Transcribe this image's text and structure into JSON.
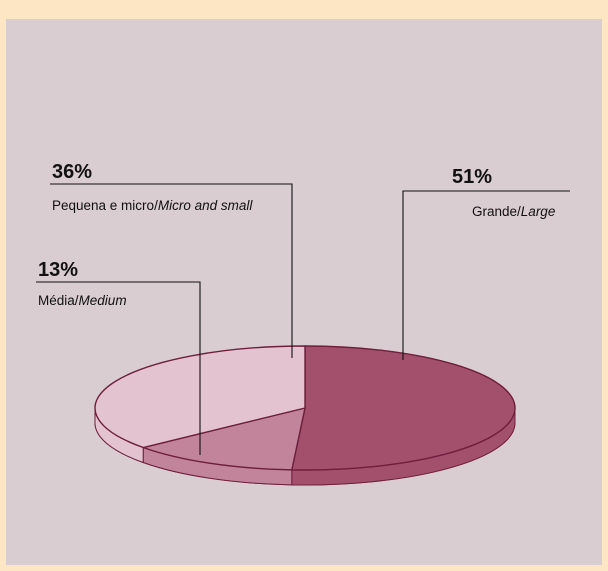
{
  "chart_data": {
    "type": "pie",
    "title": "",
    "slices": [
      {
        "name": "Grande",
        "name_en": "Large",
        "value": 51,
        "percent_label": "51%",
        "color": "#a3506d"
      },
      {
        "name": "Média",
        "name_en": "Medium",
        "value": 13,
        "percent_label": "13%",
        "color": "#c1849a"
      },
      {
        "name": "Pequena e micro",
        "name_en": "Micro and small",
        "value": 36,
        "percent_label": "36%",
        "color": "#e3c3cf"
      }
    ],
    "style": "3d-stacked-disc",
    "legend": "callouts",
    "edge_color": "#6e1f3c",
    "background_color": "#d9cdd2",
    "border_color": "#fde6c4"
  }
}
